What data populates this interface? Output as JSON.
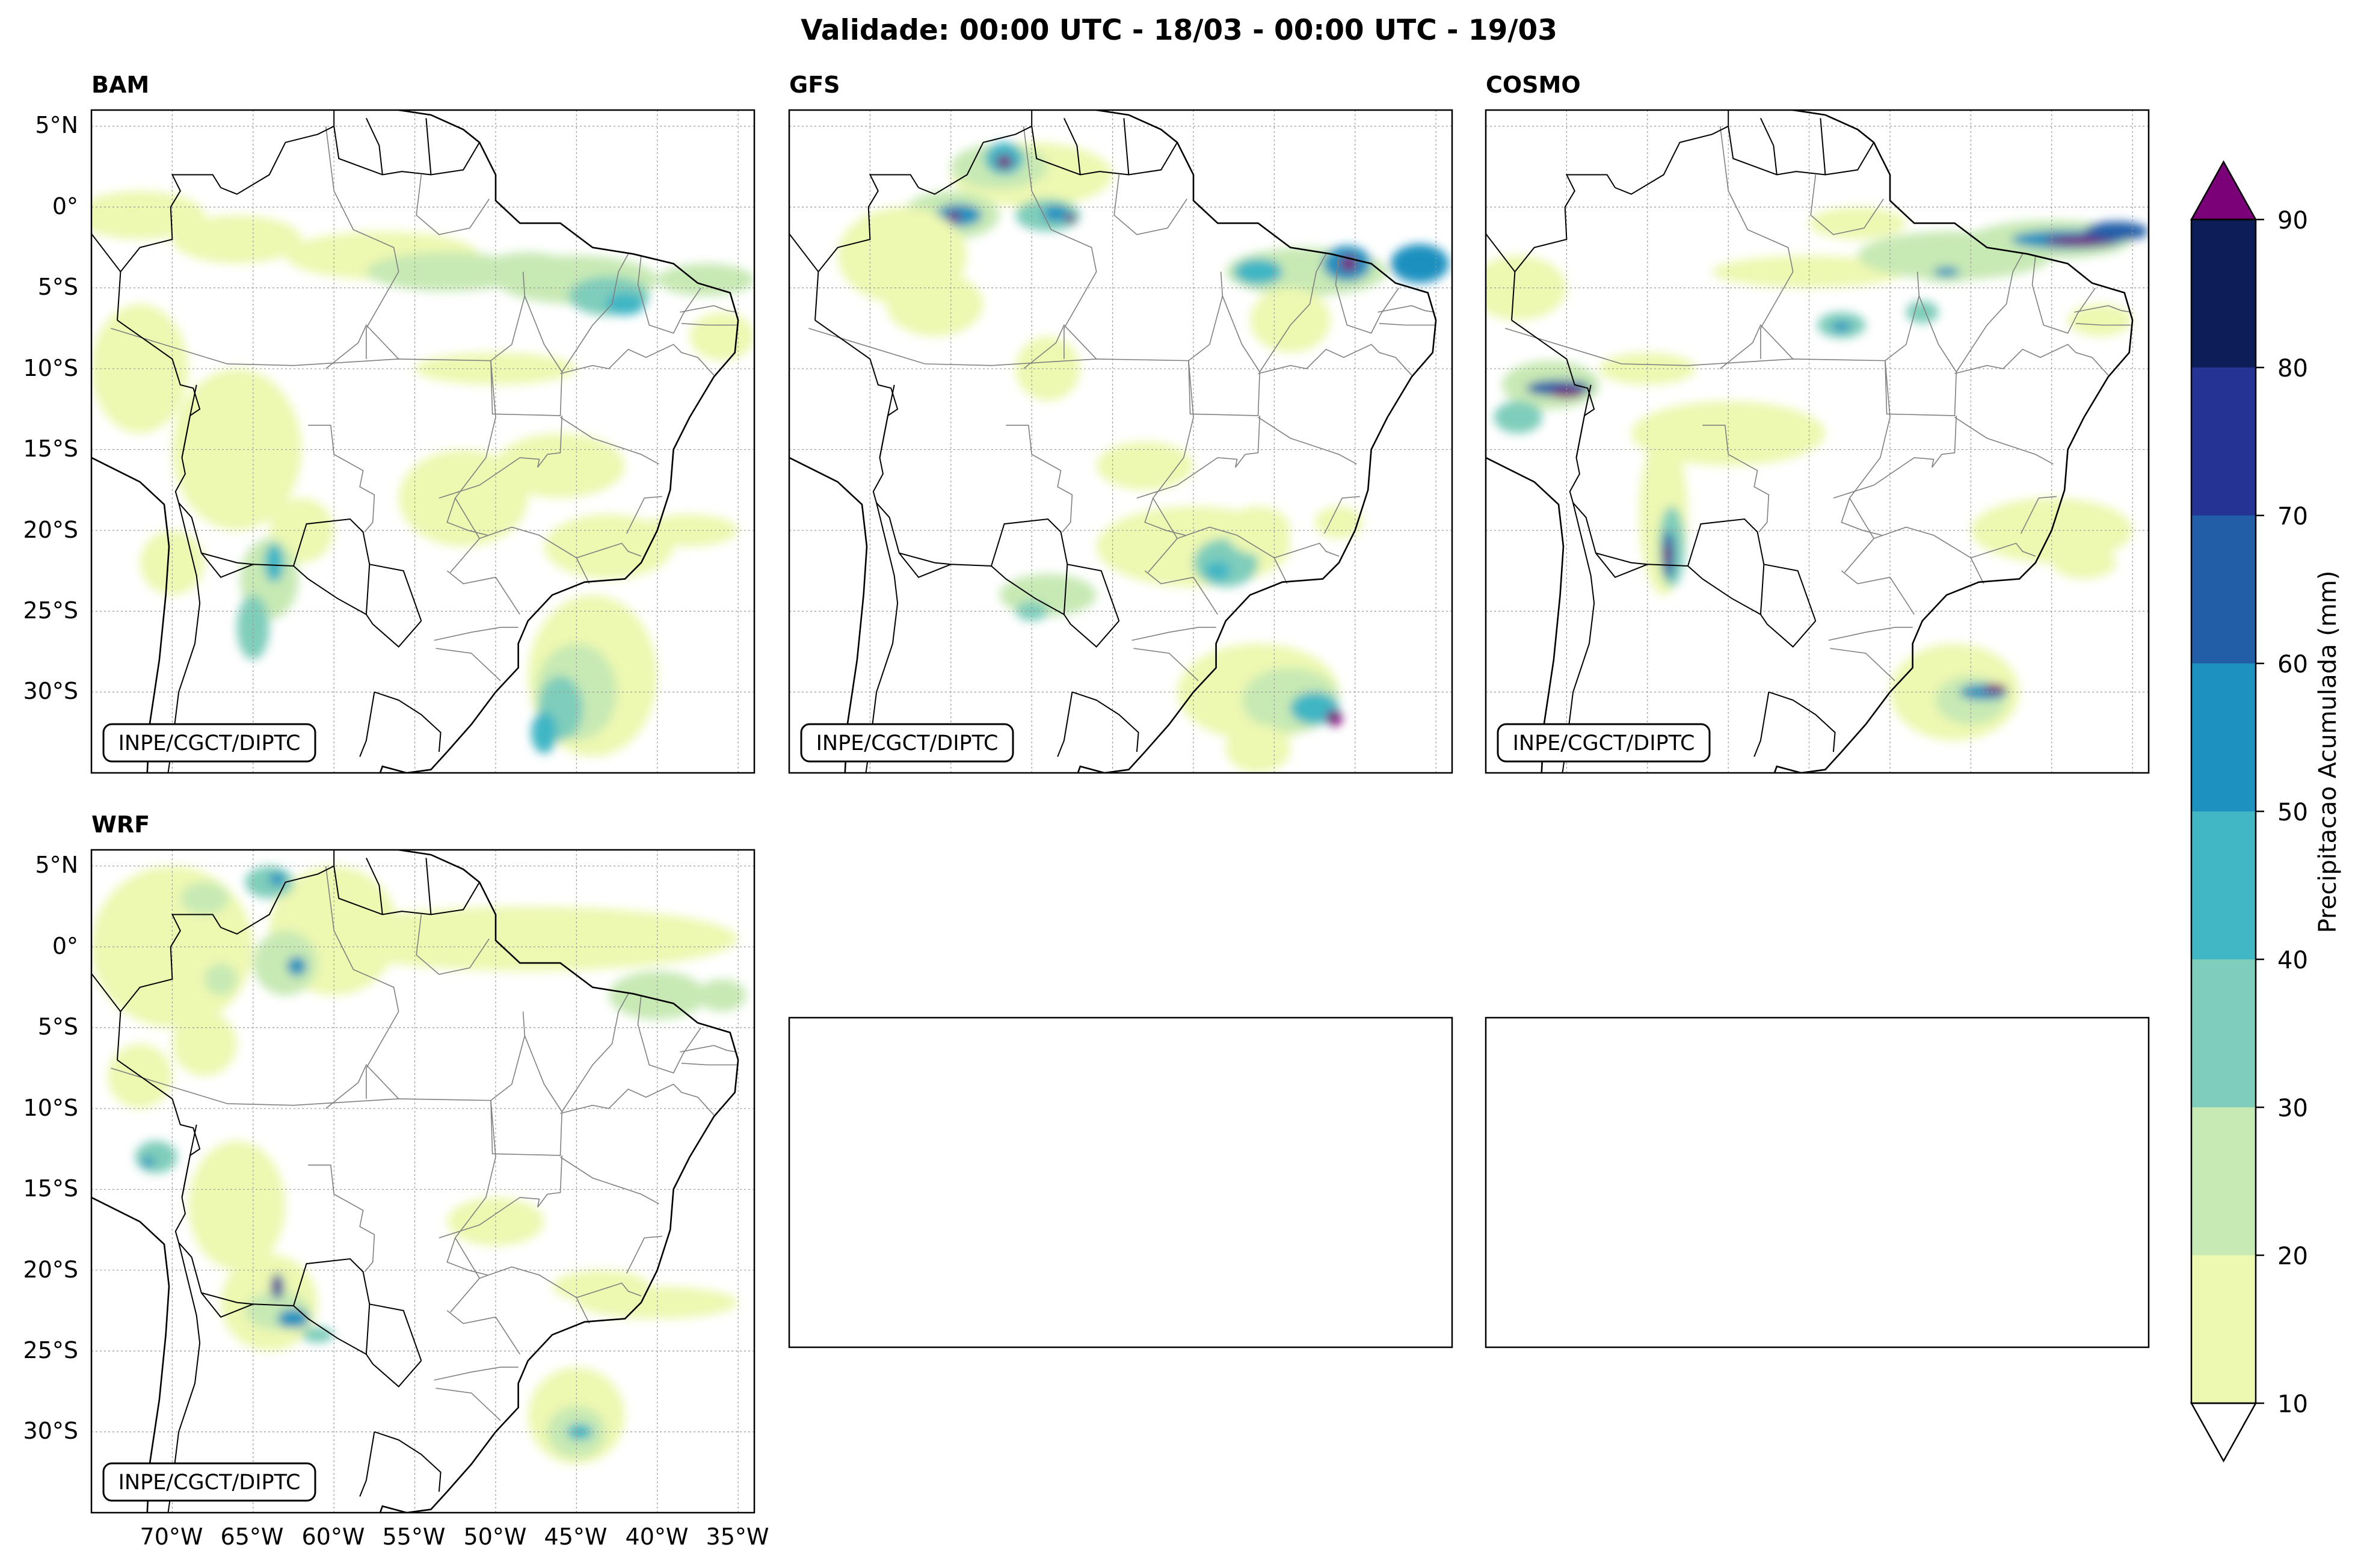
{
  "figure": {
    "title": "Validade: 00:00 UTC - 18/03 - 00:00 UTC - 19/03",
    "credit": "INPE/CGCT/DIPTC"
  },
  "axes": {
    "lat_ticks": [
      "5°N",
      "0°",
      "5°S",
      "10°S",
      "15°S",
      "20°S",
      "25°S",
      "30°S"
    ],
    "lon_ticks": [
      "70°W",
      "65°W",
      "60°W",
      "55°W",
      "50°W",
      "45°W",
      "40°W",
      "35°W"
    ],
    "lat_values": [
      5,
      0,
      -5,
      -10,
      -15,
      -20,
      -25,
      -30
    ],
    "lon_values": [
      -70,
      -65,
      -60,
      -55,
      -50,
      -45,
      -40,
      -35
    ],
    "extent": {
      "lon": [
        -75,
        -34
      ],
      "lat": [
        -35,
        6
      ]
    }
  },
  "panels": [
    {
      "id": "bam",
      "title": "BAM"
    },
    {
      "id": "gfs",
      "title": "GFS"
    },
    {
      "id": "cosmo",
      "title": "COSMO"
    },
    {
      "id": "wrf",
      "title": "WRF"
    },
    {
      "id": "empty1",
      "title": ""
    },
    {
      "id": "empty2",
      "title": ""
    }
  ],
  "colorbar": {
    "label": "Precipitacao Acumulada (mm)",
    "ticks": [
      "10",
      "20",
      "30",
      "40",
      "50",
      "60",
      "70",
      "80",
      "90"
    ],
    "levels": [
      10,
      20,
      30,
      40,
      50,
      60,
      70,
      80,
      90
    ],
    "colors": [
      "#edf8b1",
      "#c7e9b4",
      "#7fcdbb",
      "#41b6c4",
      "#1d91c0",
      "#225ea8",
      "#253494",
      "#0c1d57"
    ],
    "over_color": "#7a0177",
    "under_color": "#ffffff"
  },
  "chart_data": {
    "type": "map",
    "title": "Validade: 00:00 UTC - 18/03 - 00:00 UTC - 19/03",
    "variable": "Precipitacao Acumulada (mm)",
    "levels": [
      10,
      20,
      30,
      40,
      50,
      60,
      70,
      80,
      90
    ],
    "panels": [
      "BAM",
      "GFS",
      "COSMO",
      "WRF"
    ]
  }
}
